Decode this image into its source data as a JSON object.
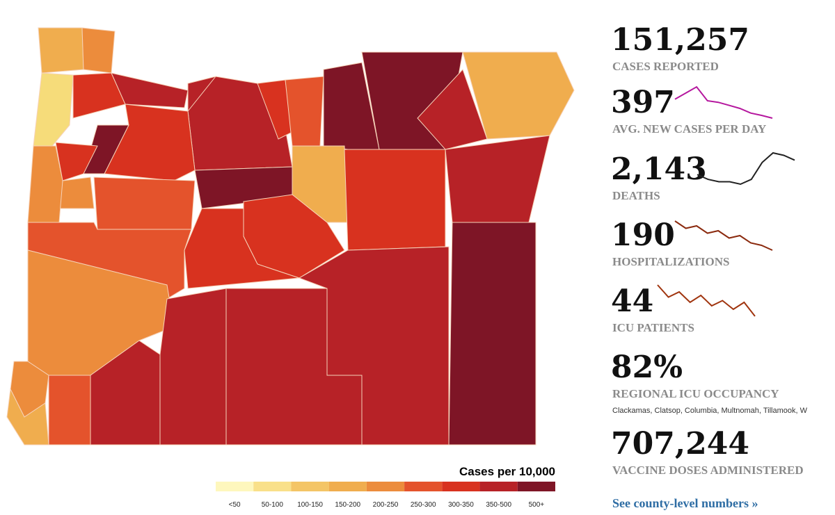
{
  "legend": {
    "title": "Cases per 10,000",
    "bins": [
      {
        "label": "<50",
        "color": "#fef7bd"
      },
      {
        "label": "50-100",
        "color": "#f9e08a"
      },
      {
        "label": "100-150",
        "color": "#f4c566"
      },
      {
        "label": "150-200",
        "color": "#f0ad4e"
      },
      {
        "label": "200-250",
        "color": "#ec8c3c"
      },
      {
        "label": "250-300",
        "color": "#e4532c"
      },
      {
        "label": "300-350",
        "color": "#d8321f"
      },
      {
        "label": "350-500",
        "color": "#b72227"
      },
      {
        "label": "500+",
        "color": "#7e1526"
      }
    ]
  },
  "stats": [
    {
      "value": "151,257",
      "label": "CASES REPORTED"
    },
    {
      "value": "397",
      "label": "AVG. NEW CASES PER DAY",
      "trend": [
        520,
        560,
        600,
        510,
        500,
        480,
        460,
        430,
        415,
        397
      ],
      "trend_color": "#b5179e"
    },
    {
      "value": "2,143",
      "label": "DEATHS",
      "trend": [
        9,
        7,
        6,
        6,
        5,
        7,
        14,
        18,
        17,
        15
      ],
      "trend_color": "#222222"
    },
    {
      "value": "190",
      "label": "HOSPITALIZATIONS",
      "trend": [
        250,
        235,
        240,
        225,
        230,
        215,
        220,
        205,
        200,
        190
      ],
      "trend_color": "#8b2a0e"
    },
    {
      "value": "44",
      "label": "ICU PATIENTS",
      "trend": [
        62,
        55,
        58,
        52,
        56,
        50,
        53,
        48,
        52,
        44
      ],
      "trend_color": "#a0340e"
    },
    {
      "value": "82%",
      "label": "REGIONAL ICU OCCUPANCY",
      "note": "Clackamas, Clatsop, Columbia, Multnomah, Tillamook, W"
    },
    {
      "value": "707,244",
      "label": "VACCINE DOSES ADMINISTERED"
    }
  ],
  "link": "See county-level numbers »"
}
